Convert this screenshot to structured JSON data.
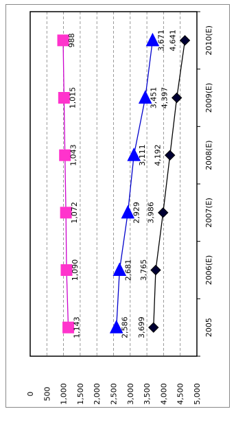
{
  "chart_data": {
    "type": "line",
    "orientation": "rotated-90-ccw",
    "categories": [
      "2005",
      "2006(E)",
      "2007(E)",
      "2008(E)",
      "2009(E)",
      "2010(E)"
    ],
    "category_labels": [
      "2005",
      "2006(E)",
      "2007(E)",
      "2008(E)",
      "2009(E)",
      "2010(E)"
    ],
    "series": [
      {
        "values": [
          3699,
          3765,
          3986,
          4192,
          4397,
          4641
        ],
        "labels": [
          "3,699",
          "3,765",
          "3,986",
          "4,192",
          "4,397",
          "4,641"
        ],
        "marker": "diamond",
        "line_color": "#000000",
        "marker_color": "#000033"
      },
      {
        "values": [
          2586,
          2681,
          2929,
          3111,
          3451,
          3671
        ],
        "labels": [
          "2,586",
          "2,681",
          "2,929",
          "3,111",
          "3,451",
          "3,671"
        ],
        "marker": "triangle",
        "line_color": "#0000cc",
        "marker_color": "#0000ff"
      },
      {
        "values": [
          1143,
          1090,
          1072,
          1043,
          1015,
          988
        ],
        "labels": [
          "1,143",
          "1,090",
          "1,072",
          "1,043",
          "1,015",
          "988"
        ],
        "marker": "square",
        "line_color": "#cc00cc",
        "marker_color": "#ff33cc"
      }
    ],
    "value_axis": {
      "min": 0,
      "max": 5000,
      "step": 500,
      "tick_labels": [
        "0",
        "500",
        "1,000",
        "1,500",
        "2,000",
        "2,500",
        "3,000",
        "3,500",
        "4,000",
        "4,500",
        "5,000"
      ]
    },
    "grid": "dashed horizontal value gridlines",
    "legend": "none",
    "title": "",
    "xlabel": "",
    "ylabel": ""
  }
}
